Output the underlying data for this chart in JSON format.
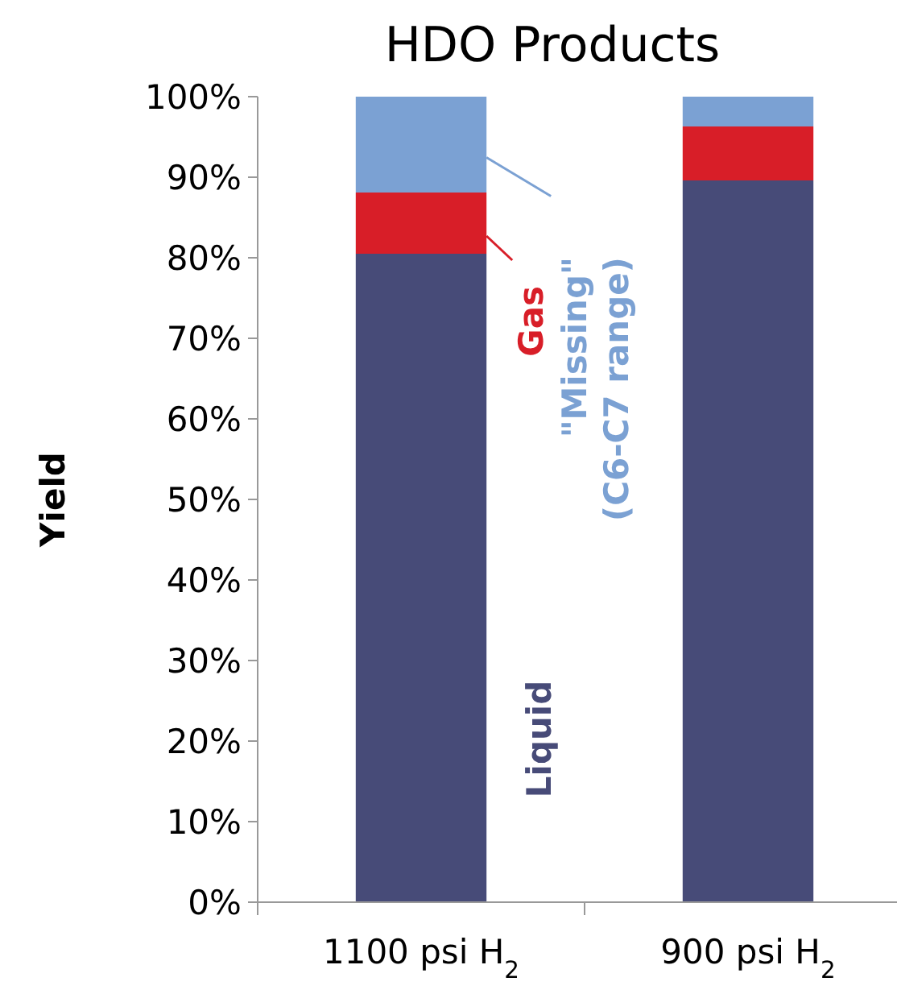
{
  "chart_data": {
    "type": "bar",
    "title": "HDO Products",
    "ylabel": "Yield",
    "categories": [
      "1100 psi H$_{2}$",
      "900 psi H$_{2}$"
    ],
    "stacked": true,
    "legend": "top left",
    "grid": false,
    "series": [
      {
        "name": "Liquid",
        "color": "#474b78",
        "values": [
          80.5,
          89.6
        ]
      },
      {
        "name": "Gas",
        "color": "#d81e28",
        "values": [
          7.6,
          6.7
        ]
      },
      {
        "name": "\"Missing\" (C6-C7 range)",
        "color": "#7ba1d3",
        "values": [
          11.9,
          3.7
        ]
      }
    ],
    "ylim": [
      0,
      100
    ],
    "yticks": [
      {
        "value": 0,
        "label": "0%"
      },
      {
        "value": 10,
        "label": "10%"
      },
      {
        "value": 20,
        "label": "20%"
      },
      {
        "value": 30,
        "label": "30%"
      },
      {
        "value": 40,
        "label": "40%"
      },
      {
        "value": 50,
        "label": "50%"
      },
      {
        "value": 60,
        "label": "60%"
      },
      {
        "value": 70,
        "label": "70%"
      },
      {
        "value": 80,
        "label": "80%"
      },
      {
        "value": 90,
        "label": "90%"
      },
      {
        "value": 100,
        "label": "100%"
      }
    ]
  }
}
